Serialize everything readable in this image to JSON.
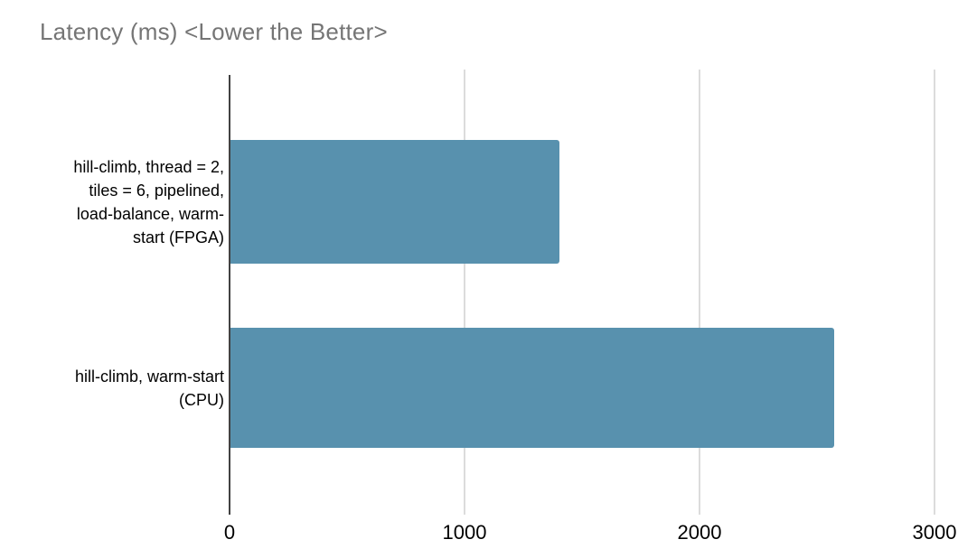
{
  "chart_data": {
    "type": "bar",
    "orientation": "horizontal",
    "title": "Latency (ms) <Lower the Better>",
    "categories": [
      "hill-climb, thread = 2, tiles = 6, pipelined, load-balance, warm-start (FPGA)",
      "hill-climb, warm-start (CPU)"
    ],
    "values": [
      1400,
      2570
    ],
    "value_unit": "ms",
    "xlabel": "",
    "ylabel": "",
    "xlim": [
      0,
      3100
    ],
    "x_ticks": [
      0,
      1000,
      2000,
      3000
    ],
    "grid": true,
    "legend": false,
    "colors": {
      "bar": "#5891ae",
      "title_text": "#757575",
      "axis_line": "#424242",
      "gridline": "#dcdcdc",
      "tick_text": "#000000",
      "category_text": "#000000",
      "background": "#ffffff"
    }
  }
}
